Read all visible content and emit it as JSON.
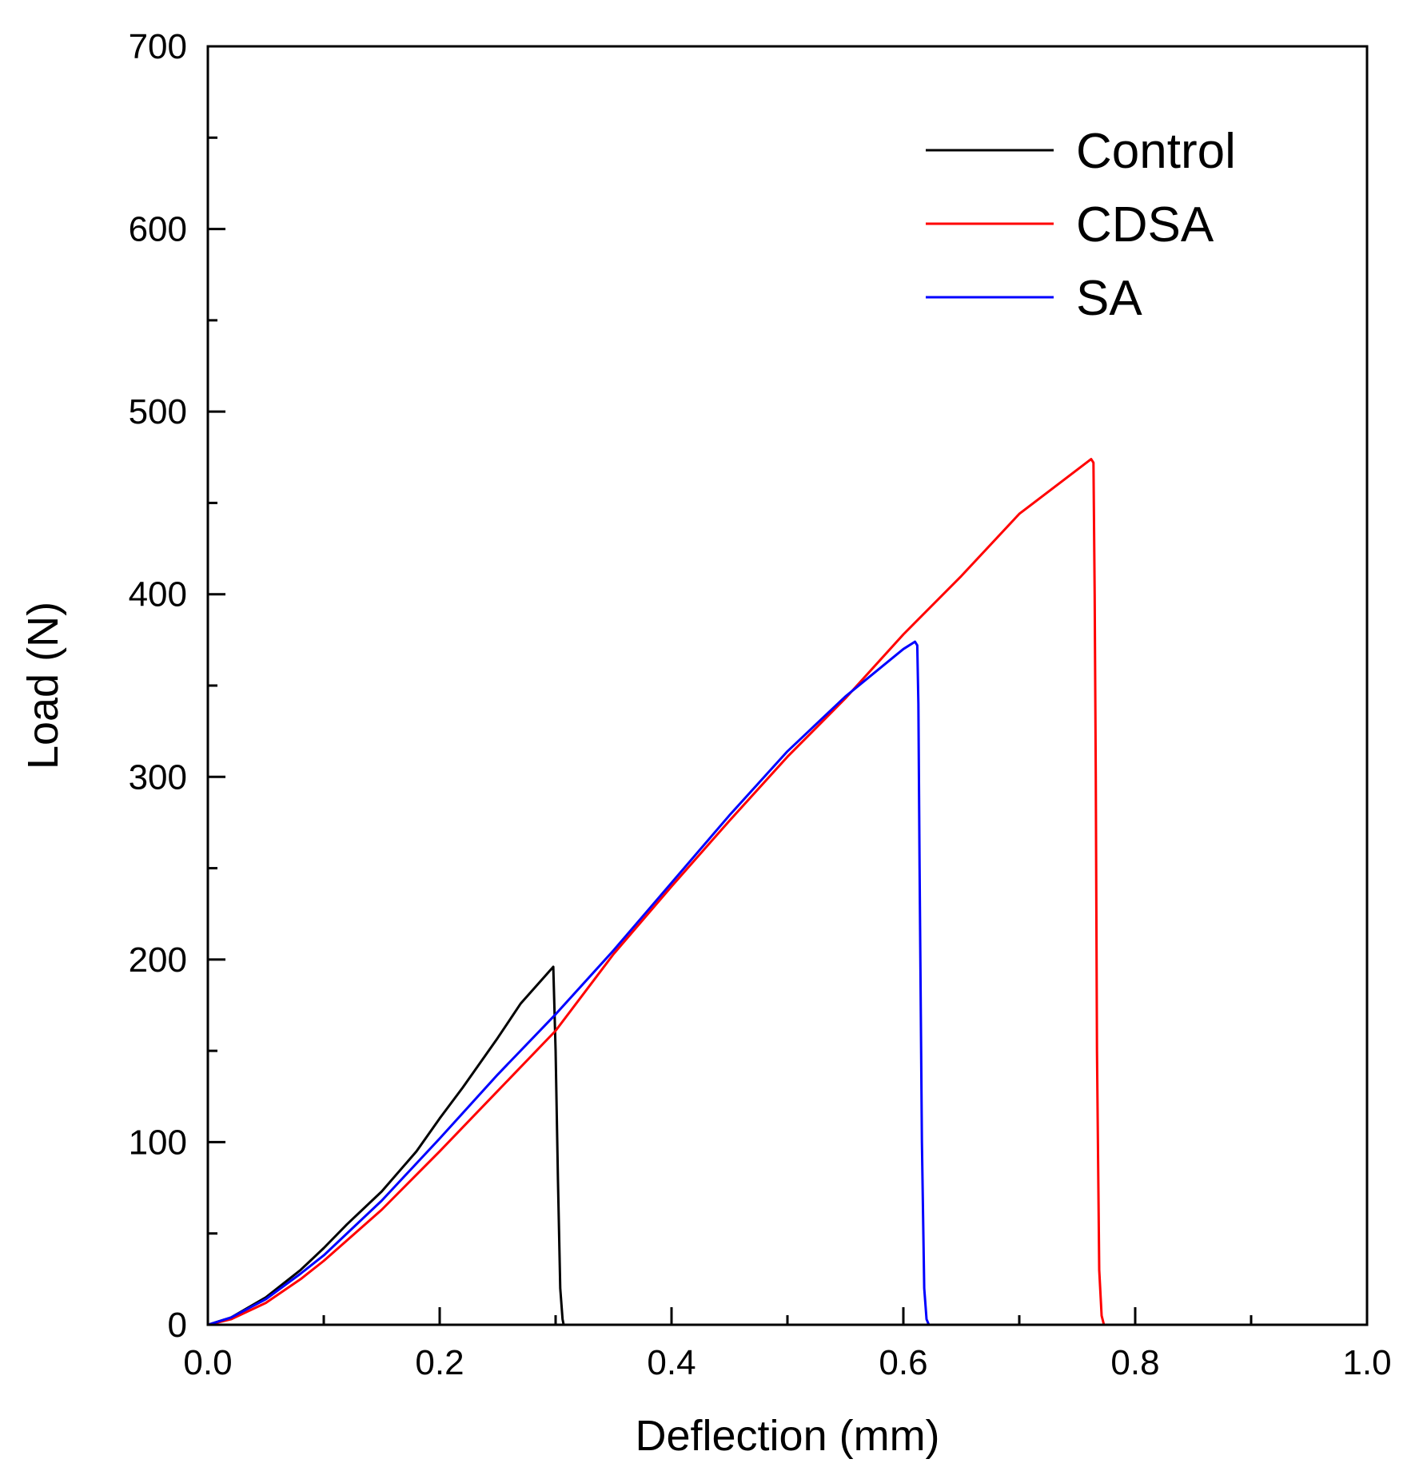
{
  "chart_data": {
    "type": "line",
    "title": "",
    "xlabel": "Deflection (mm)",
    "ylabel": "Load (N)",
    "xlim": [
      0.0,
      1.0
    ],
    "ylim": [
      0,
      700
    ],
    "xticks": [
      "0.0",
      "0.2",
      "0.4",
      "0.6",
      "0.8",
      "1.0"
    ],
    "yticks": [
      "0",
      "100",
      "200",
      "300",
      "400",
      "500",
      "600",
      "700"
    ],
    "grid": false,
    "legend_position": "top-right",
    "series": [
      {
        "name": "Control",
        "color": "#000000",
        "x": [
          0.0,
          0.02,
          0.05,
          0.08,
          0.1,
          0.12,
          0.15,
          0.18,
          0.2,
          0.22,
          0.25,
          0.27,
          0.298,
          0.3,
          0.302,
          0.304,
          0.306,
          0.307
        ],
        "y": [
          0,
          4,
          15,
          30,
          42,
          55,
          73,
          95,
          113,
          130,
          157,
          176,
          196,
          150,
          80,
          20,
          3,
          0
        ]
      },
      {
        "name": "CDSA",
        "color": "#ff0000",
        "x": [
          0.0,
          0.02,
          0.05,
          0.08,
          0.1,
          0.15,
          0.2,
          0.25,
          0.3,
          0.35,
          0.4,
          0.45,
          0.5,
          0.55,
          0.6,
          0.65,
          0.7,
          0.762,
          0.764,
          0.765,
          0.766,
          0.767,
          0.769,
          0.771,
          0.773
        ],
        "y": [
          0,
          3,
          12,
          25,
          35,
          63,
          95,
          128,
          161,
          203,
          240,
          276,
          311,
          343,
          378,
          410,
          444,
          474,
          472,
          400,
          300,
          150,
          30,
          5,
          0
        ]
      },
      {
        "name": "SA",
        "color": "#0000ff",
        "x": [
          0.0,
          0.02,
          0.05,
          0.08,
          0.1,
          0.15,
          0.2,
          0.25,
          0.3,
          0.35,
          0.4,
          0.45,
          0.5,
          0.55,
          0.6,
          0.61,
          0.612,
          0.613,
          0.614,
          0.616,
          0.618,
          0.62,
          0.622
        ],
        "y": [
          0,
          4,
          14,
          28,
          38,
          68,
          102,
          137,
          170,
          205,
          242,
          279,
          314,
          344,
          370,
          374,
          372,
          340,
          250,
          100,
          20,
          3,
          0
        ]
      }
    ]
  }
}
